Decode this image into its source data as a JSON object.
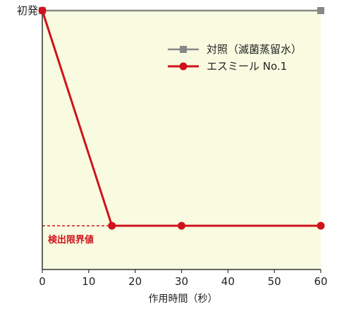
{
  "chart_data": {
    "type": "line",
    "xlabel": "作用時間（秒）",
    "y_top_label": "初発",
    "xlim": [
      0,
      60
    ],
    "x_ticks": [
      "0",
      "10",
      "20",
      "30",
      "40",
      "50",
      "60"
    ],
    "lod_label": "検出限界値",
    "legend_placement": "top-right",
    "series": [
      {
        "name": "対照（滅菌蒸留水）",
        "color": "#888888",
        "marker": "square",
        "points": [
          {
            "x": 0,
            "y": "初発"
          },
          {
            "x": 60,
            "y": "初発"
          }
        ]
      },
      {
        "name": "エスミール No.1",
        "color": "#d0121b",
        "marker": "circle",
        "points": [
          {
            "x": 0,
            "y": "初発"
          },
          {
            "x": 15,
            "y": "検出限界値"
          },
          {
            "x": 30,
            "y": "検出限界値"
          },
          {
            "x": 60,
            "y": "検出限界値"
          }
        ]
      }
    ]
  },
  "colors": {
    "plot_background": "#f8fbe0",
    "axis": "#333333",
    "lod_line": "#d0121b"
  }
}
